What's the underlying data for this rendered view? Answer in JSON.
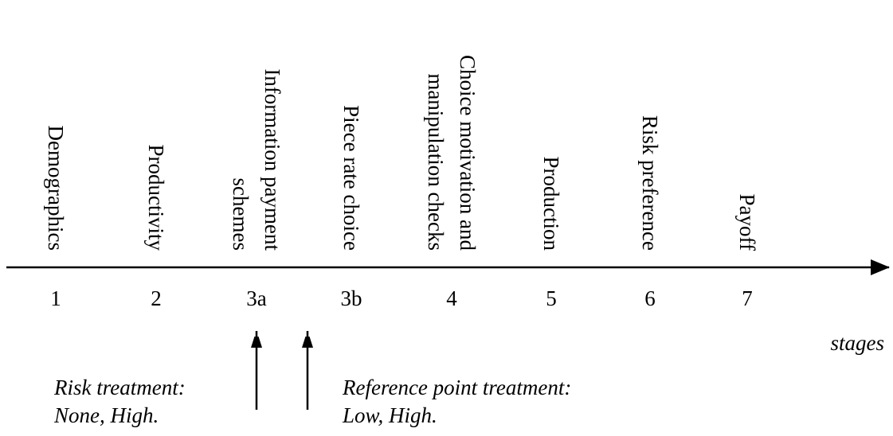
{
  "stages": [
    {
      "number": "1",
      "label": [
        "Demographics"
      ]
    },
    {
      "number": "2",
      "label": [
        "Productivity"
      ]
    },
    {
      "number": "3a",
      "label": [
        "Information payment",
        "schemes"
      ]
    },
    {
      "number": "3b",
      "label": [
        "Piece rate choice"
      ]
    },
    {
      "number": "4",
      "label": [
        "Choice motivation and",
        "manipulation checks"
      ]
    },
    {
      "number": "5",
      "label": [
        "Production"
      ]
    },
    {
      "number": "6",
      "label": [
        "Risk preference"
      ]
    },
    {
      "number": "7",
      "label": [
        "Payoff"
      ]
    }
  ],
  "axis_label": "stages",
  "treatments": [
    {
      "title": "Risk treatment:",
      "options": "None, High."
    },
    {
      "title": "Reference point treatment:",
      "options": "Low, High."
    }
  ]
}
